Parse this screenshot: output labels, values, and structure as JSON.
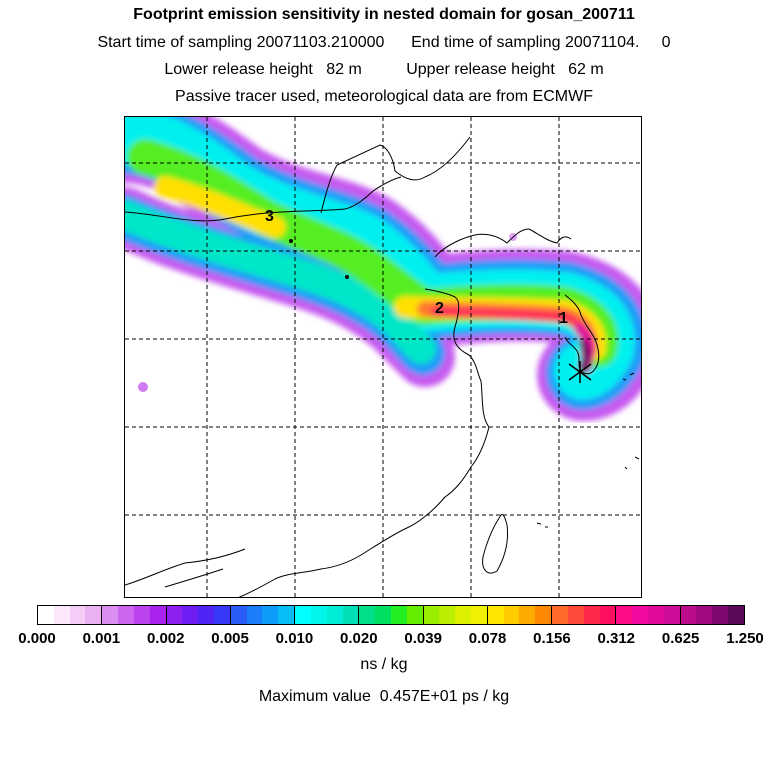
{
  "header": {
    "title": "Footprint emission sensitivity in nested domain for gosan_200711",
    "sampling": "Start time of sampling 20071103.210000      End time of sampling 20071104.     0",
    "release": "Lower release height   82 m          Upper release height   62 m",
    "tracer": "Passive tracer used, meteorological data are from ECMWF"
  },
  "map": {
    "point_labels": [
      "1",
      "2",
      "3"
    ]
  },
  "colorbar": {
    "ticks": [
      "0.000",
      "0.001",
      "0.002",
      "0.005",
      "0.010",
      "0.020",
      "0.039",
      "0.078",
      "0.156",
      "0.312",
      "0.625",
      "1.250"
    ],
    "colors": [
      [
        "#ffffff",
        "#fbe9fb",
        "#f4cdf6",
        "#eab0f2"
      ],
      [
        "#da8ef0",
        "#cc66f0",
        "#bb44ee",
        "#aa22ee"
      ],
      [
        "#8f1ff0",
        "#6e1ef2",
        "#4f24f5",
        "#3838f7"
      ],
      [
        "#2a5cf7",
        "#1a7ef8",
        "#0f9cf8",
        "#08bdf6"
      ],
      [
        "#00ffff",
        "#00f6ea",
        "#00ecd4",
        "#00e0b8"
      ],
      [
        "#00e088",
        "#00e060",
        "#22ee22",
        "#66ee00"
      ],
      [
        "#99ee00",
        "#bbee00",
        "#ddf000",
        "#f0f000"
      ],
      [
        "#ffe600",
        "#ffcc00",
        "#ffaa00",
        "#ff8800"
      ],
      [
        "#ff6a2a",
        "#ff4a3a",
        "#ff2a4a",
        "#ff1060"
      ],
      [
        "#ff0c88",
        "#f40aa0",
        "#e00a9a",
        "#cc0e9a"
      ],
      [
        "#bb0c8c",
        "#a00a80",
        "#7e0870",
        "#5a0858"
      ]
    ],
    "units": "ns / kg",
    "max_value": "Maximum value  0.457E+01 ps / kg"
  }
}
